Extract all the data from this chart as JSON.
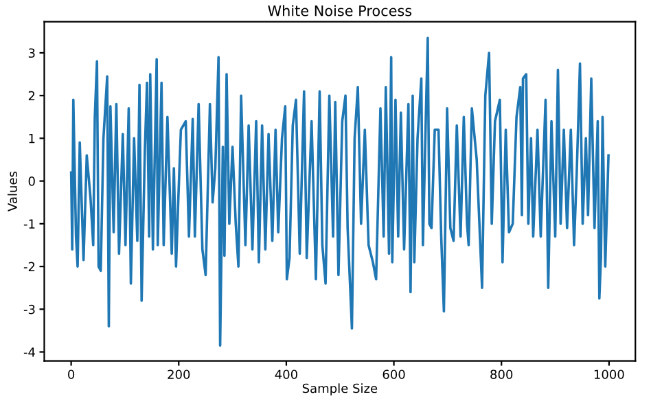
{
  "chart_data": {
    "type": "line",
    "title": "White Noise Process",
    "xlabel": "Sample Size",
    "ylabel": "Values",
    "xlim": [
      -50,
      1049
    ],
    "ylim": [
      -4.21,
      3.73
    ],
    "xticks": [
      0,
      200,
      400,
      600,
      800,
      1000
    ],
    "yticks": [
      -4,
      -3,
      -2,
      -1,
      0,
      1,
      2,
      3
    ],
    "grid": false,
    "series": [
      {
        "color": "#1f77b4",
        "x": [
          0,
          2,
          4,
          9,
          12,
          16,
          23,
          29,
          36,
          41,
          44,
          48,
          51,
          55,
          60,
          67,
          70,
          73,
          79,
          84,
          89,
          96,
          101,
          107,
          111,
          117,
          123,
          127,
          131,
          137,
          141,
          145,
          147,
          152,
          159,
          161,
          168,
          172,
          179,
          187,
          191,
          195,
          199,
          204,
          213,
          219,
          226,
          230,
          237,
          244,
          250,
          258,
          263,
          268,
          274,
          277,
          282,
          285,
          289,
          294,
          300,
          306,
          311,
          316,
          324,
          330,
          337,
          344,
          349,
          355,
          361,
          367,
          374,
          380,
          385,
          392,
          398,
          401,
          406,
          412,
          418,
          425,
          433,
          438,
          447,
          455,
          462,
          467,
          473,
          480,
          487,
          491,
          497,
          504,
          510,
          514,
          522,
          527,
          533,
          539,
          546,
          553,
          561,
          567,
          575,
          581,
          585,
          591,
          595,
          597,
          603,
          608,
          613,
          619,
          627,
          631,
          635,
          638,
          644,
          651,
          654,
          660,
          663,
          666,
          670,
          676,
          683,
          688,
          693,
          699,
          705,
          711,
          717,
          724,
          730,
          736,
          739,
          745,
          754,
          764,
          770,
          777,
          782,
          788,
          797,
          802,
          808,
          814,
          821,
          828,
          835,
          838,
          840,
          846,
          850,
          855,
          859,
          867,
          873,
          882,
          887,
          893,
          900,
          905,
          910,
          916,
          922,
          929,
          935,
          940,
          946,
          951,
          957,
          961,
          967,
          973,
          979,
          982,
          985,
          988,
          993,
          999
        ],
        "values": [
          0.2,
          -1.6,
          1.9,
          -1.3,
          -2.0,
          0.9,
          -1.85,
          0.6,
          -0.4,
          -1.5,
          1.5,
          2.8,
          -2.0,
          -2.1,
          1.0,
          2.45,
          -3.4,
          1.75,
          -1.2,
          1.8,
          -1.7,
          1.1,
          -1.5,
          1.7,
          -2.4,
          1.0,
          -1.4,
          2.25,
          -2.8,
          0.7,
          2.3,
          -1.3,
          2.5,
          -1.6,
          2.85,
          -1.5,
          2.3,
          -1.5,
          1.5,
          -1.7,
          0.3,
          -2.0,
          -0.5,
          1.2,
          1.4,
          -1.3,
          1.45,
          -1.3,
          1.8,
          -1.6,
          -2.2,
          1.8,
          -0.5,
          0.3,
          2.9,
          -3.85,
          0.8,
          -1.75,
          2.5,
          -1.0,
          0.8,
          -1.0,
          -2.0,
          2.0,
          -1.5,
          1.3,
          -1.6,
          1.4,
          -1.9,
          1.3,
          -1.6,
          1.1,
          -1.4,
          1.2,
          -1.2,
          1.0,
          1.75,
          -2.3,
          -1.8,
          1.3,
          1.9,
          -1.7,
          2.1,
          -1.8,
          1.4,
          -2.3,
          2.1,
          -1.5,
          -2.4,
          2.0,
          -1.3,
          1.85,
          -2.2,
          1.4,
          2.0,
          -1.1,
          -3.45,
          1.0,
          2.2,
          -1.0,
          1.2,
          -1.5,
          -1.9,
          -2.3,
          1.7,
          -1.3,
          2.2,
          -1.7,
          2.9,
          -1.9,
          1.9,
          -1.3,
          1.6,
          -1.6,
          1.8,
          -2.6,
          2.0,
          -1.9,
          1.0,
          2.4,
          -1.5,
          1.8,
          3.35,
          -1.0,
          -1.1,
          1.2,
          1.2,
          -1.3,
          -3.05,
          1.7,
          -1.1,
          -1.4,
          1.3,
          -1.3,
          1.5,
          -1.0,
          -1.5,
          1.7,
          0.5,
          -2.5,
          2.0,
          3.0,
          -1.0,
          1.4,
          1.9,
          -1.9,
          1.2,
          -1.2,
          -1.0,
          1.5,
          2.2,
          -0.8,
          2.4,
          2.5,
          -1.0,
          1.0,
          -1.3,
          1.2,
          -1.3,
          1.9,
          -2.5,
          1.4,
          -1.3,
          2.6,
          -1.0,
          1.2,
          -1.1,
          1.2,
          -1.5,
          0.2,
          2.75,
          -1.0,
          1.0,
          -0.8,
          2.4,
          -1.1,
          1.4,
          -2.75,
          -1.8,
          1.5,
          -2.0,
          0.6
        ]
      }
    ]
  }
}
